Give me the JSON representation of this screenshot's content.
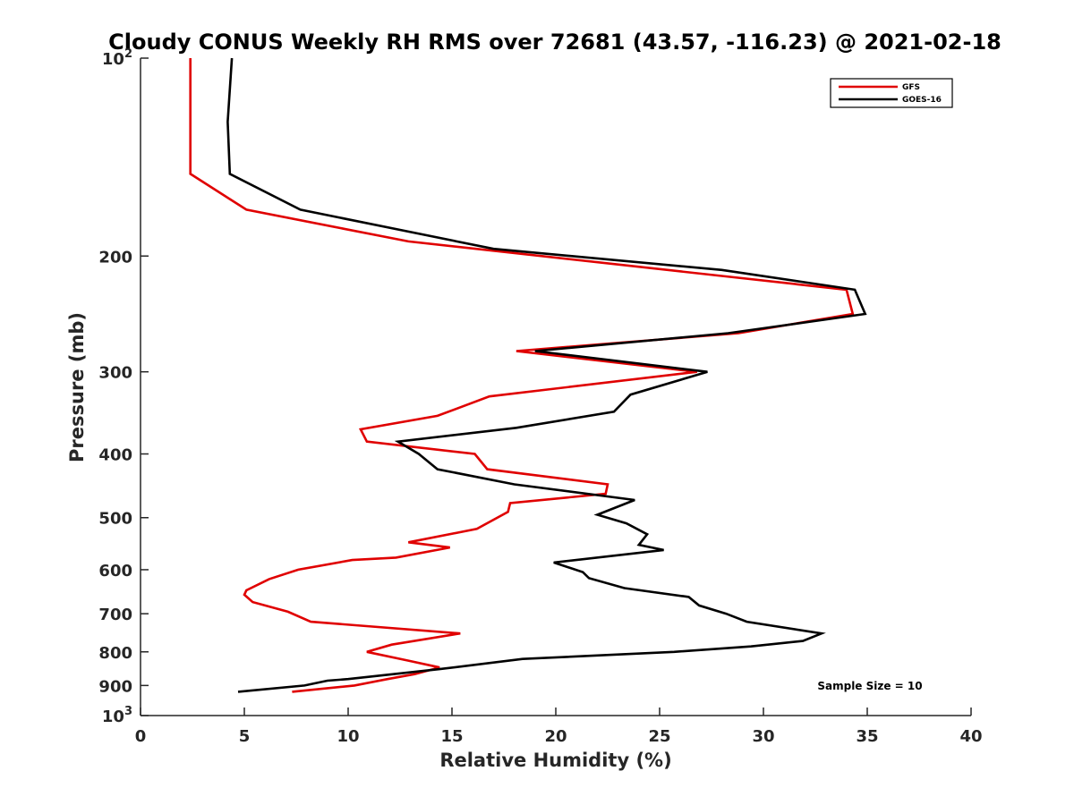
{
  "chart_data": {
    "type": "line",
    "title": "Cloudy CONUS Weekly RH RMS over 72681 (43.57, -116.23) @ 2021-02-18",
    "xlabel": "Relative Humidity (%)",
    "ylabel": "Pressure (mb)",
    "xlim": [
      0,
      40
    ],
    "ylim": [
      100,
      1000
    ],
    "yscale": "log",
    "y_reversed": true,
    "x_ticks": [
      "0",
      "5",
      "10",
      "15",
      "20",
      "25",
      "30",
      "35",
      "40"
    ],
    "y_ticks": [
      {
        "value": 100,
        "base": "10",
        "exp": "2"
      },
      {
        "value": 200,
        "label": "200"
      },
      {
        "value": 300,
        "label": "300"
      },
      {
        "value": 400,
        "label": "400"
      },
      {
        "value": 500,
        "label": "500"
      },
      {
        "value": 600,
        "label": "600"
      },
      {
        "value": 700,
        "label": "700"
      },
      {
        "value": 800,
        "label": "800"
      },
      {
        "value": 900,
        "label": "900"
      },
      {
        "value": 1000,
        "base": "10",
        "exp": "3"
      }
    ],
    "grid": false,
    "legend_position": "top-right",
    "annotation": "Sample Size = 10",
    "series": [
      {
        "name": "GFS",
        "color": "#e00000",
        "points": [
          [
            2.4,
            100
          ],
          [
            2.4,
            125
          ],
          [
            2.4,
            150
          ],
          [
            5.1,
            170
          ],
          [
            12.9,
            190
          ],
          [
            34.0,
            225
          ],
          [
            34.3,
            245
          ],
          [
            28.8,
            262
          ],
          [
            18.1,
            279
          ],
          [
            26.8,
            300
          ],
          [
            16.8,
            327
          ],
          [
            14.3,
            350
          ],
          [
            10.6,
            367
          ],
          [
            10.9,
            383
          ],
          [
            16.1,
            400
          ],
          [
            16.7,
            422
          ],
          [
            22.5,
            445
          ],
          [
            22.4,
            460
          ],
          [
            17.8,
            475
          ],
          [
            17.7,
            490
          ],
          [
            16.2,
            520
          ],
          [
            12.9,
            545
          ],
          [
            14.9,
            555
          ],
          [
            12.3,
            575
          ],
          [
            10.2,
            580
          ],
          [
            7.6,
            600
          ],
          [
            6.2,
            620
          ],
          [
            5.1,
            645
          ],
          [
            5.0,
            655
          ],
          [
            5.4,
            672
          ],
          [
            7.1,
            695
          ],
          [
            8.2,
            720
          ],
          [
            15.4,
            750
          ],
          [
            12.1,
            780
          ],
          [
            10.9,
            800
          ],
          [
            12.9,
            825
          ],
          [
            14.4,
            845
          ],
          [
            13.2,
            865
          ],
          [
            11.9,
            880
          ],
          [
            10.3,
            900
          ],
          [
            7.3,
            920
          ]
        ]
      },
      {
        "name": "GOES-16",
        "color": "#000000",
        "points": [
          [
            4.4,
            100
          ],
          [
            4.2,
            125
          ],
          [
            4.3,
            150
          ],
          [
            7.7,
            170
          ],
          [
            17.0,
            195
          ],
          [
            28.0,
            210
          ],
          [
            34.4,
            225
          ],
          [
            34.9,
            245
          ],
          [
            28.3,
            262
          ],
          [
            19.0,
            279
          ],
          [
            27.3,
            300
          ],
          [
            23.6,
            325
          ],
          [
            22.8,
            345
          ],
          [
            18.1,
            365
          ],
          [
            12.4,
            383
          ],
          [
            13.4,
            400
          ],
          [
            14.3,
            422
          ],
          [
            18.0,
            445
          ],
          [
            23.8,
            470
          ],
          [
            22.0,
            495
          ],
          [
            23.4,
            510
          ],
          [
            24.4,
            530
          ],
          [
            24.0,
            550
          ],
          [
            25.2,
            560
          ],
          [
            19.9,
            585
          ],
          [
            21.3,
            605
          ],
          [
            21.6,
            618
          ],
          [
            23.3,
            640
          ],
          [
            26.4,
            660
          ],
          [
            26.9,
            680
          ],
          [
            28.2,
            700
          ],
          [
            29.2,
            720
          ],
          [
            32.8,
            750
          ],
          [
            31.9,
            770
          ],
          [
            29.4,
            785
          ],
          [
            25.7,
            800
          ],
          [
            18.4,
            820
          ],
          [
            14.4,
            850
          ],
          [
            10.0,
            880
          ],
          [
            9.0,
            885
          ],
          [
            7.9,
            900
          ],
          [
            4.7,
            920
          ]
        ]
      }
    ]
  }
}
